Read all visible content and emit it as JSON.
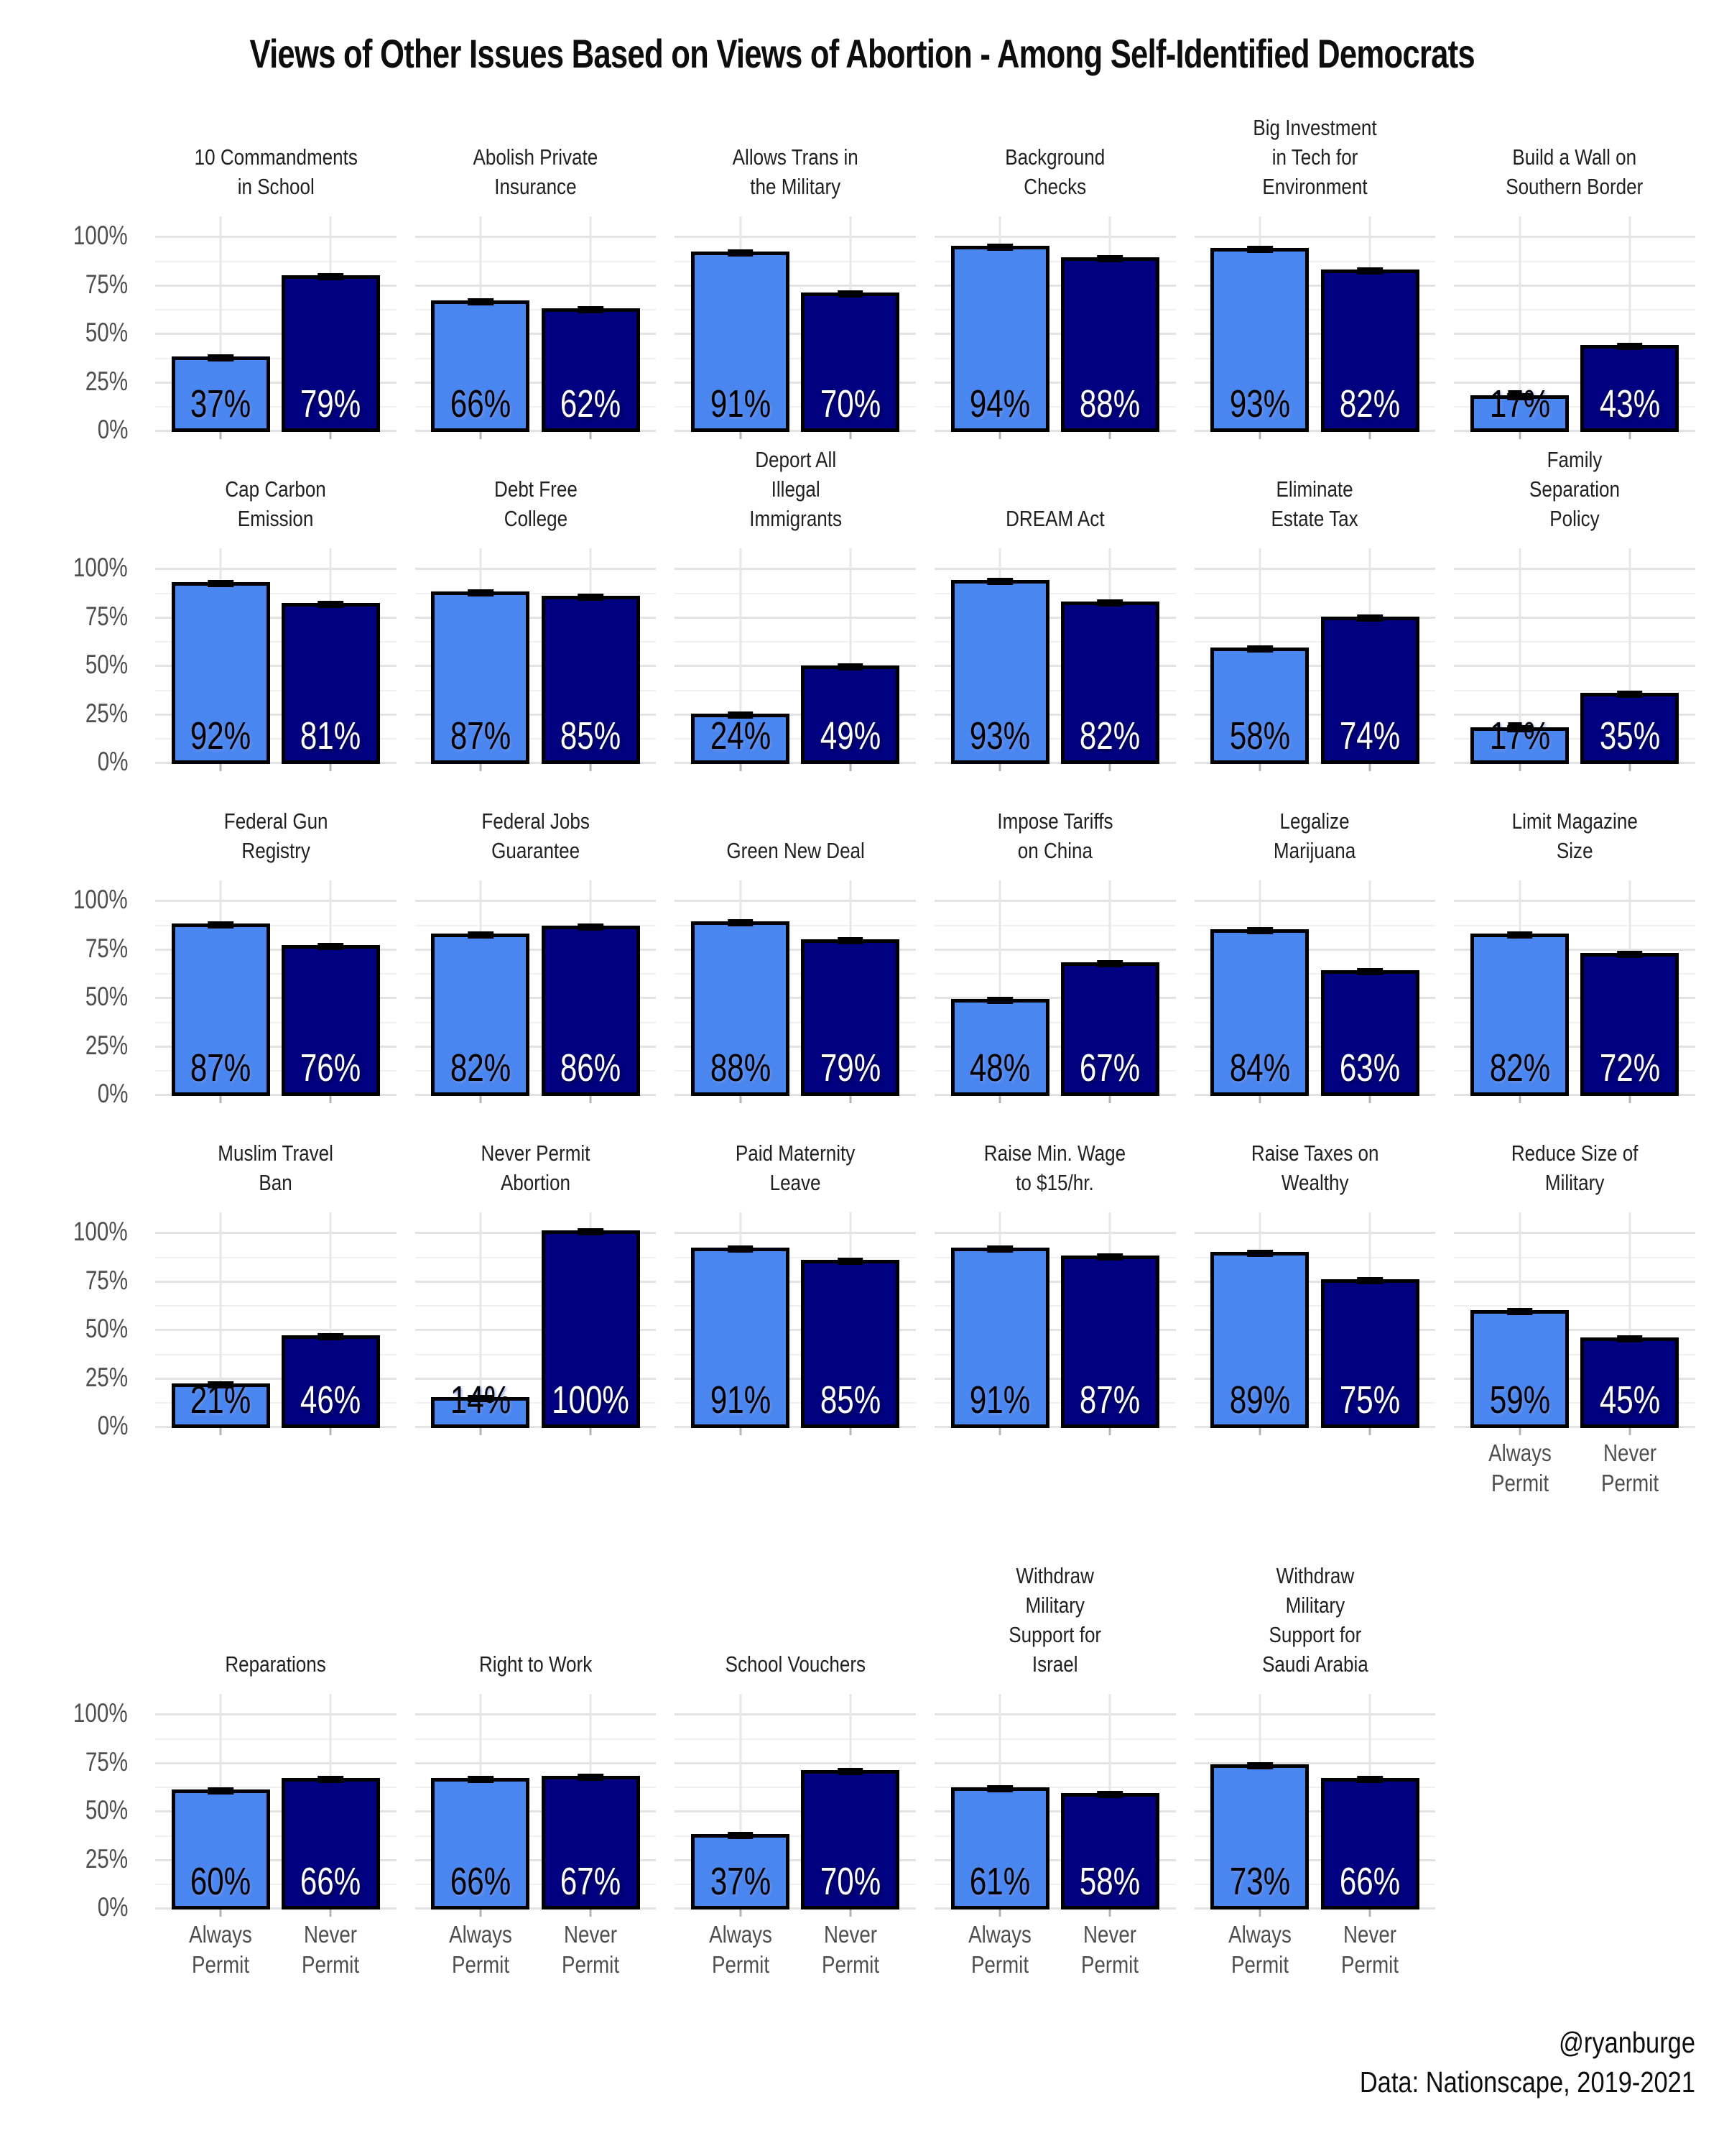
{
  "title": "Views of Other Issues Based on Views of Abortion - Among Self-Identified Democrats",
  "footer": {
    "credit": "@ryanburge",
    "source": "Data: Nationscape, 2019-2021"
  },
  "axis": {
    "y_ticks": [
      "100%",
      "75%",
      "50%",
      "25%",
      "0%"
    ],
    "y_tick_values": [
      100,
      75,
      50,
      25,
      0
    ],
    "x_labels": [
      "Always\nPermit",
      "Never\nPermit"
    ]
  },
  "colors": {
    "always_permit_bar": "#4a86f0",
    "never_permit_bar": "#000080",
    "bar_outline": "#000000",
    "gridline_major": "#e3e3e3",
    "gridline_minor": "#f0f0f0",
    "axis_text": "#4f4f4f"
  },
  "chart_data": {
    "type": "bar",
    "categories": [
      "Always Permit",
      "Never Permit"
    ],
    "ylim": [
      0,
      100
    ],
    "grid": "on",
    "legend": "none",
    "error_bars": true,
    "panels": [
      {
        "title": "10 Commandments\nin School",
        "values": [
          37,
          79
        ],
        "labels": [
          "37%",
          "79%"
        ],
        "show_x_labels": false
      },
      {
        "title": "Abolish Private\nInsurance",
        "values": [
          66,
          62
        ],
        "labels": [
          "66%",
          "62%"
        ],
        "show_x_labels": false
      },
      {
        "title": "Allows Trans in\nthe Military",
        "values": [
          91,
          70
        ],
        "labels": [
          "91%",
          "70%"
        ],
        "show_x_labels": false
      },
      {
        "title": "Background\nChecks",
        "values": [
          94,
          88
        ],
        "labels": [
          "94%",
          "88%"
        ],
        "show_x_labels": false
      },
      {
        "title": "Big Investment\nin Tech for\nEnvironment",
        "values": [
          93,
          82
        ],
        "labels": [
          "93%",
          "82%"
        ],
        "show_x_labels": false
      },
      {
        "title": "Build a Wall on\nSouthern Border",
        "values": [
          17,
          43
        ],
        "labels": [
          "17%",
          "43%"
        ],
        "show_x_labels": false
      },
      {
        "title": "Cap Carbon\nEmission",
        "values": [
          92,
          81
        ],
        "labels": [
          "92%",
          "81%"
        ],
        "show_x_labels": false
      },
      {
        "title": "Debt Free\nCollege",
        "values": [
          87,
          85
        ],
        "labels": [
          "87%",
          "85%"
        ],
        "show_x_labels": false
      },
      {
        "title": "Deport All\nIllegal\nImmigrants",
        "values": [
          24,
          49
        ],
        "labels": [
          "24%",
          "49%"
        ],
        "show_x_labels": false
      },
      {
        "title": "DREAM Act",
        "values": [
          93,
          82
        ],
        "labels": [
          "93%",
          "82%"
        ],
        "show_x_labels": false
      },
      {
        "title": "Eliminate\nEstate Tax",
        "values": [
          58,
          74
        ],
        "labels": [
          "58%",
          "74%"
        ],
        "show_x_labels": false
      },
      {
        "title": "Family\nSeparation\nPolicy",
        "values": [
          17,
          35
        ],
        "labels": [
          "17%",
          "35%"
        ],
        "show_x_labels": false
      },
      {
        "title": "Federal Gun\nRegistry",
        "values": [
          87,
          76
        ],
        "labels": [
          "87%",
          "76%"
        ],
        "show_x_labels": false
      },
      {
        "title": "Federal Jobs\nGuarantee",
        "values": [
          82,
          86
        ],
        "labels": [
          "82%",
          "86%"
        ],
        "show_x_labels": false
      },
      {
        "title": "Green New Deal",
        "values": [
          88,
          79
        ],
        "labels": [
          "88%",
          "79%"
        ],
        "show_x_labels": false
      },
      {
        "title": "Impose Tariffs\non China",
        "values": [
          48,
          67
        ],
        "labels": [
          "48%",
          "67%"
        ],
        "show_x_labels": false
      },
      {
        "title": "Legalize\nMarijuana",
        "values": [
          84,
          63
        ],
        "labels": [
          "84%",
          "63%"
        ],
        "show_x_labels": false
      },
      {
        "title": "Limit Magazine\nSize",
        "values": [
          82,
          72
        ],
        "labels": [
          "82%",
          "72%"
        ],
        "show_x_labels": false
      },
      {
        "title": "Muslim Travel\nBan",
        "values": [
          21,
          46
        ],
        "labels": [
          "21%",
          "46%"
        ],
        "show_x_labels": false
      },
      {
        "title": "Never Permit\nAbortion",
        "values": [
          14,
          100
        ],
        "labels": [
          "14%",
          "100%"
        ],
        "show_x_labels": false
      },
      {
        "title": "Paid Maternity\nLeave",
        "values": [
          91,
          85
        ],
        "labels": [
          "91%",
          "85%"
        ],
        "show_x_labels": false
      },
      {
        "title": "Raise Min. Wage\nto $15/hr.",
        "values": [
          91,
          87
        ],
        "labels": [
          "91%",
          "87%"
        ],
        "show_x_labels": false
      },
      {
        "title": "Raise Taxes on\nWealthy",
        "values": [
          89,
          75
        ],
        "labels": [
          "89%",
          "75%"
        ],
        "show_x_labels": false
      },
      {
        "title": "Reduce Size of\nMilitary",
        "values": [
          59,
          45
        ],
        "labels": [
          "59%",
          "45%"
        ],
        "show_x_labels": true
      },
      {
        "title": "Reparations",
        "values": [
          60,
          66
        ],
        "labels": [
          "60%",
          "66%"
        ],
        "show_x_labels": true
      },
      {
        "title": "Right to Work",
        "values": [
          66,
          67
        ],
        "labels": [
          "66%",
          "67%"
        ],
        "show_x_labels": true
      },
      {
        "title": "School Vouchers",
        "values": [
          37,
          70
        ],
        "labels": [
          "37%",
          "70%"
        ],
        "show_x_labels": true
      },
      {
        "title": "Withdraw\nMilitary\nSupport for\nIsrael",
        "values": [
          61,
          58
        ],
        "labels": [
          "61%",
          "58%"
        ],
        "show_x_labels": true
      },
      {
        "title": "Withdraw\nMilitary\nSupport for\nSaudi Arabia",
        "values": [
          73,
          66
        ],
        "labels": [
          "73%",
          "66%"
        ],
        "show_x_labels": true
      }
    ]
  }
}
